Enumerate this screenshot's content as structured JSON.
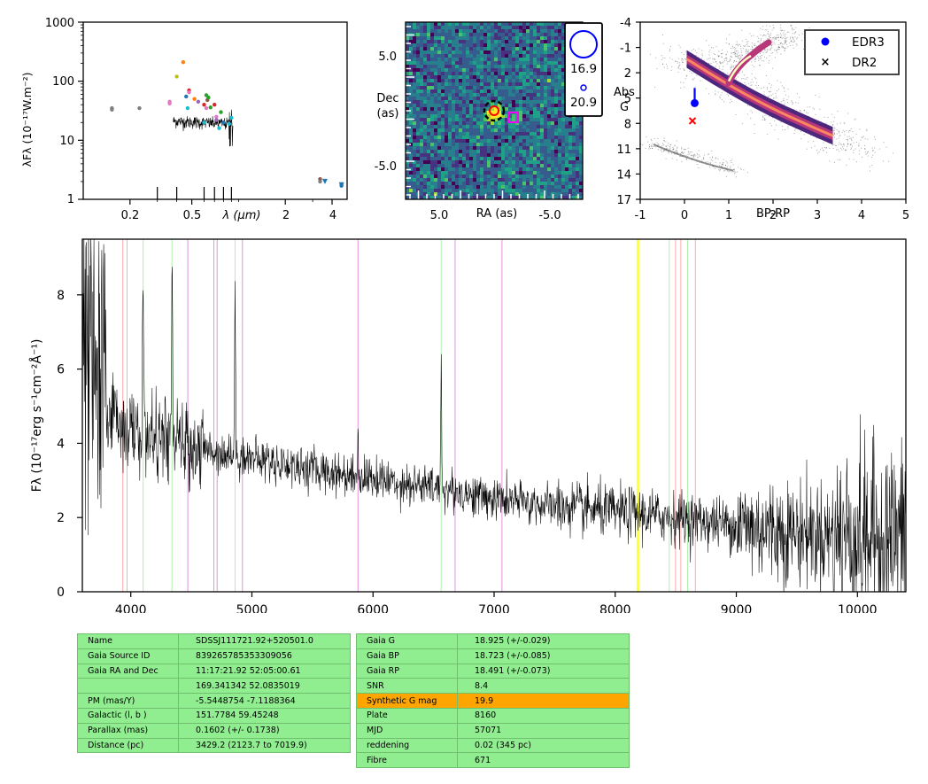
{
  "sed_panel": {
    "ylabel": "λFλ (10⁻¹⁷W.m⁻²)",
    "xlabel": "λ (μm)",
    "y_ticks": [
      "1",
      "10",
      "100",
      "1000"
    ],
    "x_ticks": [
      "0.2",
      "0.5",
      "2",
      "4"
    ]
  },
  "image_panel": {
    "xlabel": "RA (as)",
    "ylabel_line1": "Dec",
    "ylabel_line2": "(as)",
    "x_ticks": [
      "5.0",
      "-5.0"
    ],
    "y_ticks": [
      "5.0",
      "-5.0"
    ],
    "mag_legend": [
      "16.9",
      "20.9"
    ]
  },
  "hrd_panel": {
    "xlabel": "BP-RP",
    "ylabel_line1": "Abs",
    "ylabel_line2": "G",
    "x_ticks": [
      "-1",
      "0",
      "1",
      "2",
      "3",
      "4",
      "5"
    ],
    "y_ticks": [
      "-4",
      "-1",
      "2",
      "5",
      "8",
      "11",
      "14",
      "17"
    ],
    "legend": [
      "EDR3",
      "DR2"
    ],
    "colors": {
      "edr3": "#0000ff",
      "dr2": "#ff0000"
    }
  },
  "spectrum_panel": {
    "ylabel": "Fλ (10⁻¹⁷erg s⁻¹cm⁻²Å⁻¹)",
    "x_ticks": [
      "4000",
      "5000",
      "6000",
      "7000",
      "8000",
      "9000",
      "10000"
    ],
    "y_ticks": [
      "0",
      "2",
      "4",
      "6",
      "8"
    ]
  },
  "chart_data": [
    {
      "type": "scatter",
      "xlabel": "λ (μm)",
      "ylabel": "λFλ (10⁻¹⁷W.m⁻²)",
      "x_scale": "log",
      "y_scale": "log",
      "xlim": [
        0.1,
        5.0
      ],
      "ylim": [
        1,
        1000
      ],
      "photometry": [
        {
          "x": 0.153,
          "y": 33,
          "color": "#7f7f7f"
        },
        {
          "x": 0.153,
          "y": 35,
          "color": "#7f7f7f"
        },
        {
          "x": 0.23,
          "y": 35,
          "color": "#7f7f7f"
        },
        {
          "x": 0.36,
          "y": 45,
          "color": "#e377c2"
        },
        {
          "x": 0.36,
          "y": 42,
          "color": "#e377c2"
        },
        {
          "x": 0.4,
          "y": 120,
          "color": "#bcbd22"
        },
        {
          "x": 0.44,
          "y": 210,
          "color": "#ff7f0e"
        },
        {
          "x": 0.46,
          "y": 55,
          "color": "#1f77b4"
        },
        {
          "x": 0.47,
          "y": 35,
          "color": "#17becf"
        },
        {
          "x": 0.48,
          "y": 70,
          "color": "#d62728"
        },
        {
          "x": 0.48,
          "y": 65,
          "color": "#e377c2"
        },
        {
          "x": 0.52,
          "y": 50,
          "color": "#ff7f0e"
        },
        {
          "x": 0.55,
          "y": 45,
          "color": "#9467bd"
        },
        {
          "x": 0.6,
          "y": 40,
          "color": "#d62728"
        },
        {
          "x": 0.62,
          "y": 58,
          "color": "#2ca02c"
        },
        {
          "x": 0.63,
          "y": 48,
          "color": "#8c564b"
        },
        {
          "x": 0.64,
          "y": 53,
          "color": "#2ca02c"
        },
        {
          "x": 0.62,
          "y": 35,
          "color": "#e377c2"
        },
        {
          "x": 0.66,
          "y": 36,
          "color": "#2ca02c"
        },
        {
          "x": 0.7,
          "y": 40,
          "color": "#d62728"
        },
        {
          "x": 0.72,
          "y": 25,
          "color": "#e377c2"
        },
        {
          "x": 0.72,
          "y": 22,
          "color": "#9467bd"
        },
        {
          "x": 0.77,
          "y": 30,
          "color": "#2ca02c"
        },
        {
          "x": 0.8,
          "y": 20,
          "color": "#1f77b4"
        },
        {
          "x": 0.87,
          "y": 19,
          "color": "#17becf"
        },
        {
          "x": 0.9,
          "y": 24,
          "color": "#17becf"
        },
        {
          "x": 0.75,
          "y": 16,
          "color": "#17becf"
        },
        {
          "x": 0.6,
          "y": 20,
          "color": "#17becf"
        },
        {
          "x": 3.35,
          "y": 2.2,
          "color": "#8c564b"
        },
        {
          "x": 3.35,
          "y": 2.0,
          "color": "#7f7f7f"
        },
        {
          "x": 4.6,
          "y": 1.8,
          "color": "#8c564b"
        },
        {
          "x": 4.6,
          "y": 1.7,
          "color": "#1f77b4"
        }
      ],
      "upper_limits": [
        {
          "x": 3.6,
          "y": 2.0,
          "color": "#1f77b4"
        },
        {
          "x": 4.6,
          "y": 1.75,
          "color": "#1f77b4"
        }
      ],
      "spectrum_range_um": [
        0.38,
        0.92
      ],
      "spectrum_level": 20
    },
    {
      "type": "heatmap",
      "xlabel": "RA (as)",
      "ylabel": "Dec (as)",
      "xlim": [
        10,
        -10
      ],
      "ylim": [
        -10,
        10
      ],
      "source": {
        "ra": 0,
        "dec": 0
      },
      "neighbour": {
        "ra": -2,
        "dec": -1
      },
      "magnitude_legend": [
        16.9,
        20.9
      ]
    },
    {
      "type": "scatter",
      "xlabel": "BP-RP",
      "ylabel": "Abs G",
      "xlim": [
        -1,
        5
      ],
      "ylim": [
        17,
        -4
      ],
      "series": [
        {
          "name": "EDR3",
          "x": [
            0.23
          ],
          "y": [
            5.6
          ],
          "yerr": [
            1.8
          ]
        },
        {
          "name": "DR2",
          "x": [
            0.18
          ],
          "y": [
            7.7
          ]
        }
      ]
    },
    {
      "type": "line",
      "xlabel": "",
      "ylabel": "Fλ (10⁻¹⁷erg s⁻¹cm⁻²Å⁻¹)",
      "xlim": [
        3600,
        10400
      ],
      "ylim": [
        0,
        9.5
      ],
      "continuum": [
        [
          3600,
          6.5
        ],
        [
          3800,
          5.0
        ],
        [
          4000,
          4.3
        ],
        [
          4500,
          3.9
        ],
        [
          5000,
          3.6
        ],
        [
          5500,
          3.3
        ],
        [
          6000,
          3.05
        ],
        [
          6500,
          2.8
        ],
        [
          7000,
          2.5
        ],
        [
          7500,
          2.3
        ],
        [
          8000,
          2.15
        ],
        [
          8500,
          2.0
        ],
        [
          9000,
          1.8
        ],
        [
          9500,
          1.6
        ],
        [
          10000,
          1.5
        ],
        [
          10400,
          1.55
        ]
      ],
      "emission_lines": [
        {
          "x": 4102,
          "height": 4.8
        },
        {
          "x": 4340,
          "height": 5.2
        },
        {
          "x": 4861,
          "height": 4.4
        },
        {
          "x": 5876,
          "height": 1.0
        },
        {
          "x": 6563,
          "height": 3.6
        }
      ],
      "vlines_red": [
        3934,
        3969,
        8498,
        8542,
        8662
      ],
      "vlines_green": [
        4102,
        4340,
        4861,
        6563,
        8446,
        8598
      ],
      "vlines_violet": [
        4471,
        4686,
        4713,
        4922,
        5876,
        6678,
        7065
      ],
      "vlines_yellow": [
        8183,
        8195
      ]
    }
  ],
  "info_table_left": [
    [
      "Name",
      "SDSSJ111721.92+520501.0"
    ],
    [
      "Gaia Source ID",
      "839265785353309056"
    ],
    [
      "Gaia RA and Dec",
      "11:17:21.92    52:05:00.61"
    ],
    [
      "",
      "169.341342    52.0835019"
    ],
    [
      "PM (mas/Y)",
      "-5.5448754    -7.1188364"
    ],
    [
      "Galactic (l, b )",
      "151.7784    59.45248"
    ],
    [
      "Parallax (mas)",
      "0.1602 (+/- 0.1738)"
    ],
    [
      "Distance (pc)",
      "3429.2 (2123.7 to 7019.9)"
    ]
  ],
  "info_table_right": [
    [
      "Gaia G",
      "18.925 (+/-0.029)"
    ],
    [
      "Gaia BP",
      "18.723 (+/-0.085)"
    ],
    [
      "Gaia RP",
      "18.491 (+/-0.073)"
    ],
    [
      "SNR",
      "8.4"
    ],
    [
      "Synthetic G mag",
      "19.9"
    ],
    [
      "Plate",
      "8160"
    ],
    [
      "MJD",
      "57071"
    ],
    [
      "reddening",
      "0.02 (345 pc)"
    ],
    [
      "Fibre",
      "671"
    ]
  ],
  "highlight_row_label": "Synthetic G mag",
  "highlight_color": "#ffa500",
  "table_color": "#90ee90"
}
